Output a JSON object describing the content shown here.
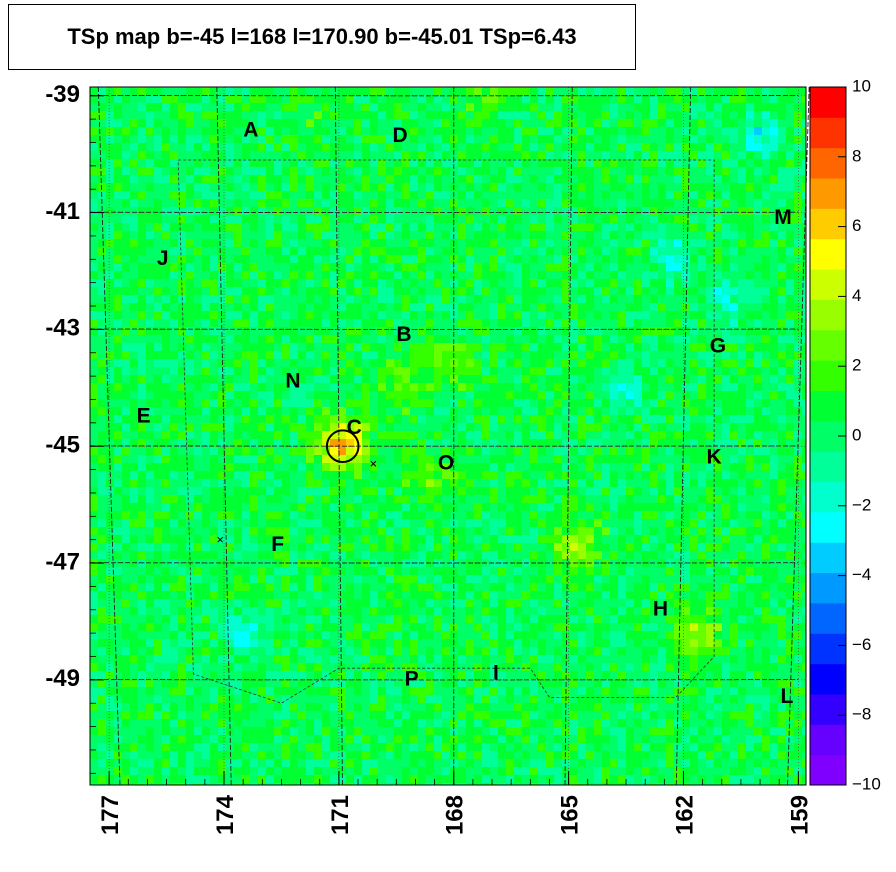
{
  "chart_data": {
    "type": "heatmap",
    "title": "TSp map b=-45 l=168 l=170.90 b=-45.01 TSp=6.43",
    "xlabel": "",
    "ylabel": "",
    "x_ticks": [
      "177",
      "174",
      "171",
      "168",
      "165",
      "162",
      "159"
    ],
    "y_ticks": [
      "-39",
      "-41",
      "-43",
      "-45",
      "-47",
      "-49"
    ],
    "xlim": [
      177.5,
      158.8
    ],
    "ylim": [
      -50.8,
      -38.85
    ],
    "colorbar": {
      "range": [
        -10,
        10
      ],
      "ticks": [
        "10",
        "8",
        "6",
        "4",
        "2",
        "0",
        "−2",
        "−4",
        "−6",
        "−8",
        "−10"
      ],
      "colors": [
        "#7f00ff",
        "#6600ff",
        "#3300ff",
        "#0000ff",
        "#0033ff",
        "#0066ff",
        "#0099ff",
        "#00ccff",
        "#00ffff",
        "#00ffcc",
        "#00ff99",
        "#00ff66",
        "#00ff33",
        "#33ff00",
        "#66ff00",
        "#99ff00",
        "#ccff00",
        "#ffff00",
        "#ffcc00",
        "#ff9900",
        "#ff6600",
        "#ff3300",
        "#ff0000"
      ]
    },
    "map_colormap_mean": 0.4,
    "hotspots": [
      {
        "l": 170.9,
        "b": -44.95,
        "value": 6.43
      },
      {
        "l": 168.1,
        "b": -43.55,
        "value": 2.5
      },
      {
        "l": 169.5,
        "b": -44.0,
        "value": 2.2
      },
      {
        "l": 168.6,
        "b": -45.55,
        "value": 2.2
      },
      {
        "l": 164.8,
        "b": -46.7,
        "value": 3.5
      },
      {
        "l": 161.6,
        "b": -48.2,
        "value": 3.2
      },
      {
        "l": 167.3,
        "b": -38.9,
        "value": 1.5
      },
      {
        "l": 171.6,
        "b": -39.2,
        "value": 1.5
      }
    ],
    "coldspots": [
      {
        "l": 160.0,
        "b": -39.7,
        "value": -3.0
      },
      {
        "l": 162.2,
        "b": -41.8,
        "value": -3.2
      },
      {
        "l": 160.8,
        "b": -42.5,
        "value": -2.5
      },
      {
        "l": 173.5,
        "b": -48.2,
        "value": -2.5
      },
      {
        "l": 163.4,
        "b": -44.0,
        "value": -2.0
      }
    ],
    "labels": [
      {
        "text": "A",
        "l": 173.3,
        "b": -39.6
      },
      {
        "text": "D",
        "l": 169.4,
        "b": -39.7
      },
      {
        "text": "M",
        "l": 159.4,
        "b": -41.1
      },
      {
        "text": "J",
        "l": 175.6,
        "b": -41.8
      },
      {
        "text": "B",
        "l": 169.3,
        "b": -43.1
      },
      {
        "text": "G",
        "l": 161.1,
        "b": -43.3
      },
      {
        "text": "N",
        "l": 172.2,
        "b": -43.9
      },
      {
        "text": "E",
        "l": 176.1,
        "b": -44.5
      },
      {
        "text": "C",
        "l": 170.6,
        "b": -44.7
      },
      {
        "text": "K",
        "l": 161.2,
        "b": -45.2
      },
      {
        "text": "O",
        "l": 168.2,
        "b": -45.3
      },
      {
        "text": "F",
        "l": 172.6,
        "b": -46.7
      },
      {
        "text": "H",
        "l": 162.6,
        "b": -47.8
      },
      {
        "text": "P",
        "l": 169.1,
        "b": -49.0
      },
      {
        "text": "I",
        "l": 166.9,
        "b": -48.9
      },
      {
        "text": "L",
        "l": 159.3,
        "b": -49.3
      }
    ],
    "circle": {
      "l": 170.9,
      "b": -45.0,
      "radius_deg": 0.75
    },
    "crosses": [
      {
        "l": 170.1,
        "b": -45.3
      },
      {
        "l": 174.1,
        "b": -46.6
      }
    ]
  }
}
